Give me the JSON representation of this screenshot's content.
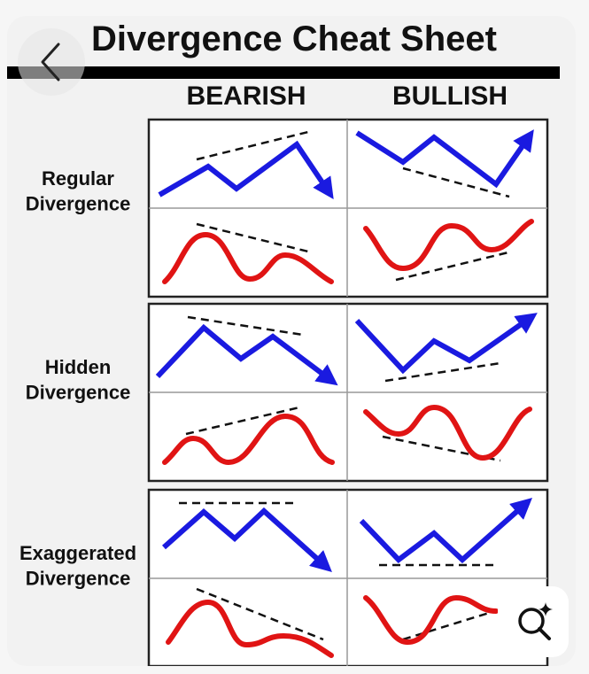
{
  "image": {
    "title": "Divergence Cheat Sheet",
    "columns": [
      "BEARISH",
      "BULLISH"
    ],
    "rows": [
      "Regular Divergence",
      "Hidden Divergence",
      "Exaggerated Divergence"
    ]
  }
}
